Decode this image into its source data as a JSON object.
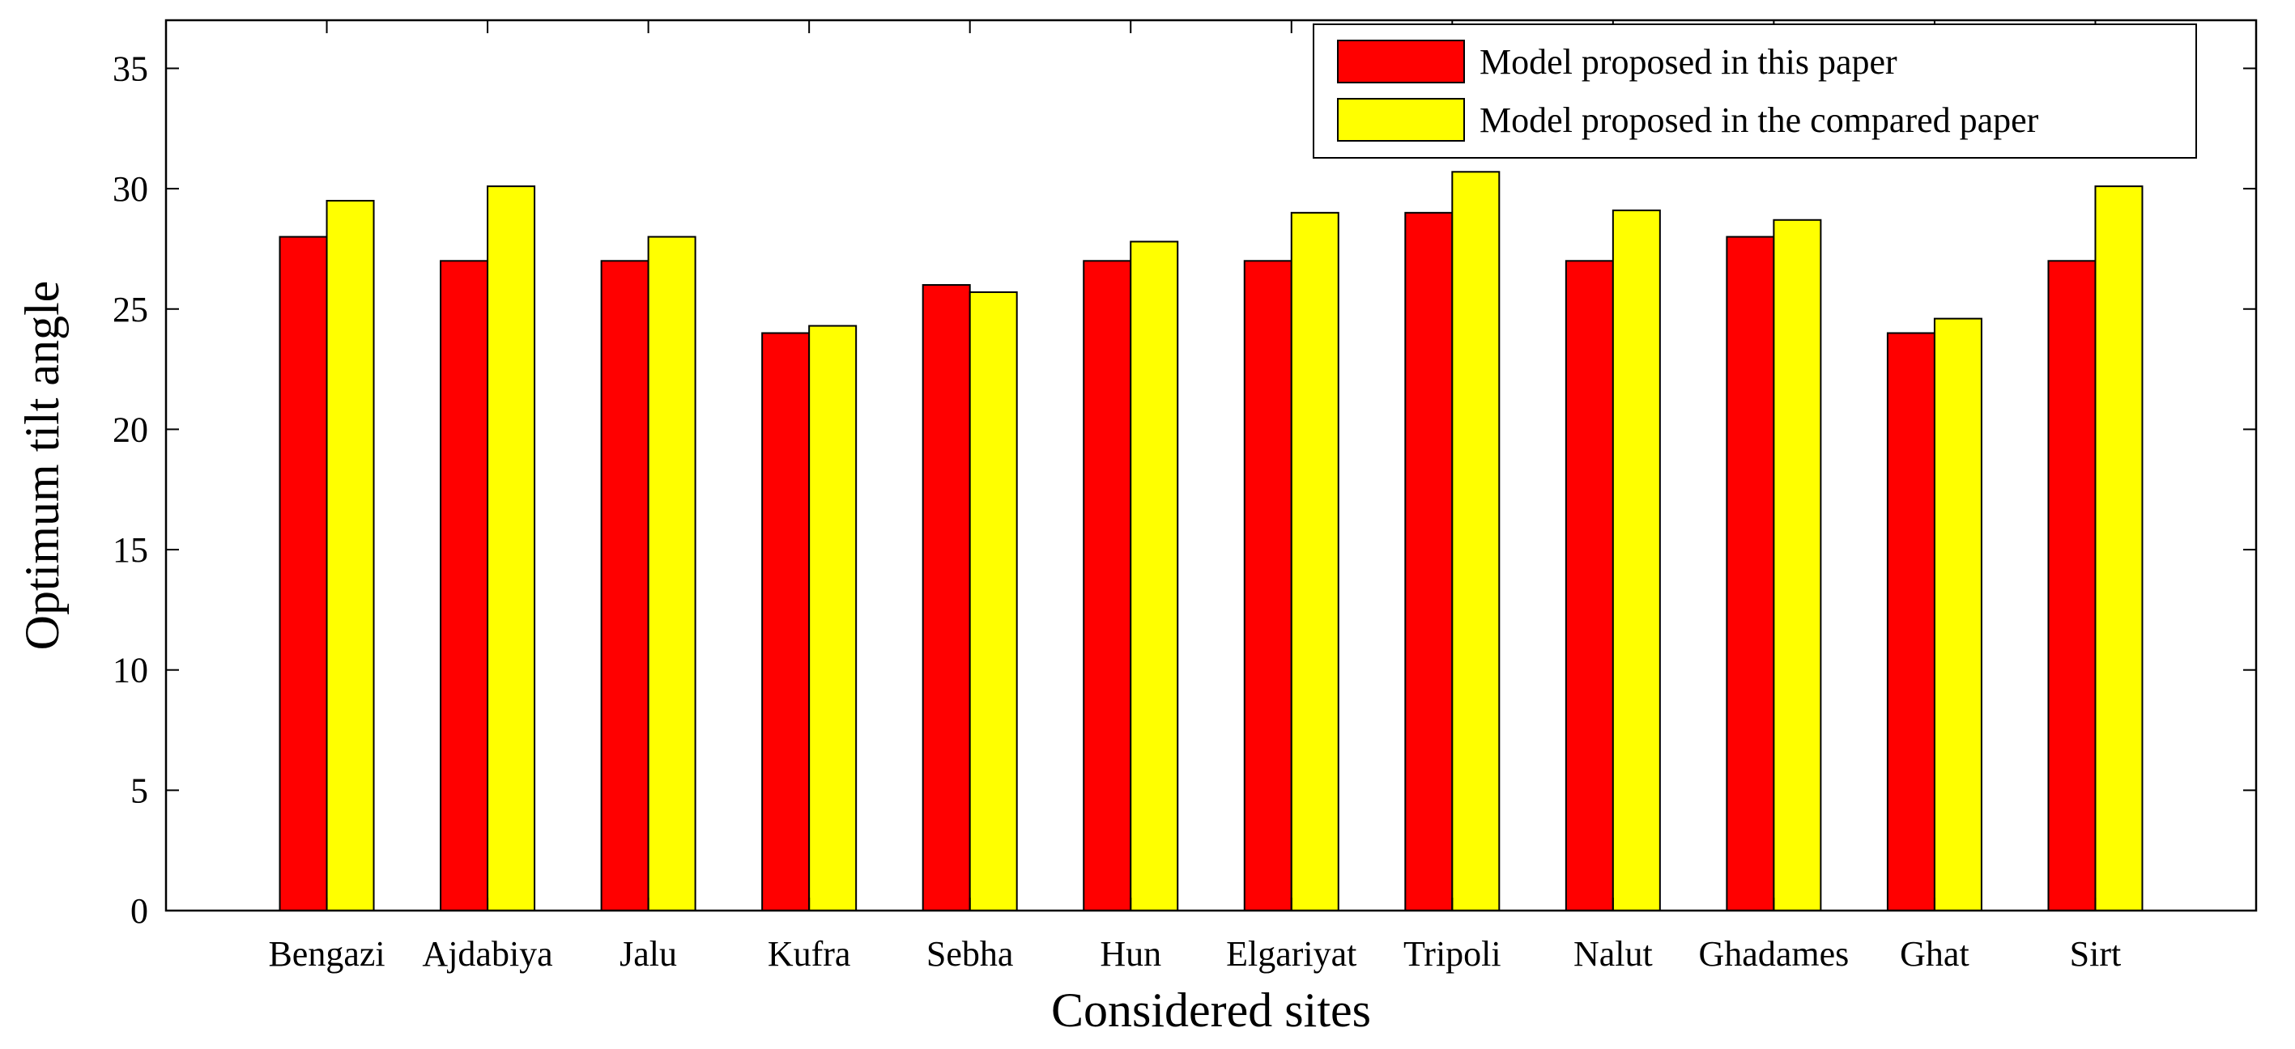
{
  "chart_data": {
    "type": "bar",
    "title": "",
    "xlabel": "Considered sites",
    "ylabel": "Optimum tilt angle",
    "ylim": [
      0,
      37
    ],
    "yticks": [
      0,
      5,
      10,
      15,
      20,
      25,
      30,
      35
    ],
    "grid": false,
    "legend_position": "top-right",
    "categories": [
      "Bengazi",
      "Ajdabiya",
      "Jalu",
      "Kufra",
      "Sebha",
      "Hun",
      "Elgariyat",
      "Tripoli",
      "Nalut",
      "Ghadames",
      "Ghat",
      "Sirt"
    ],
    "series": [
      {
        "name": "Model proposed in this paper",
        "color": "#ff0000",
        "values": [
          28,
          27,
          27,
          24,
          26,
          27,
          27,
          29,
          27,
          28,
          24,
          27
        ]
      },
      {
        "name": "Model proposed in the compared paper",
        "color": "#ffff00",
        "values": [
          29.5,
          30.1,
          28,
          24.3,
          25.7,
          27.8,
          29,
          30.7,
          29.1,
          28.7,
          24.6,
          30.1
        ]
      }
    ]
  }
}
